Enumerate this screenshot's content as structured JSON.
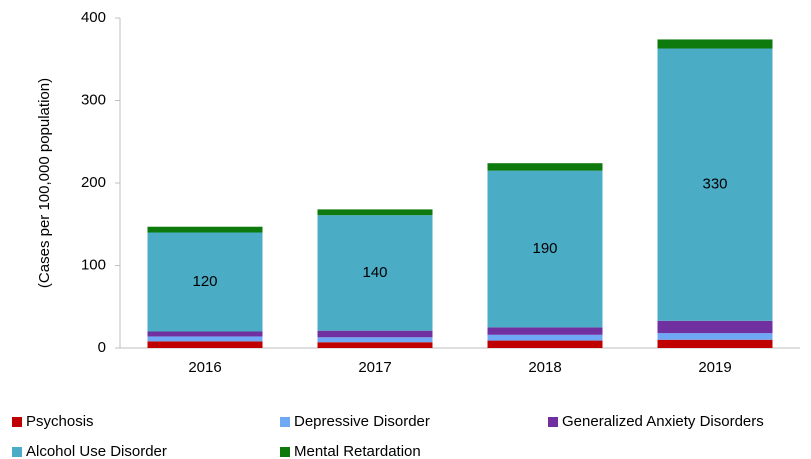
{
  "chart_data": {
    "type": "stacked_bar",
    "y_label": "(Cases per 100,000 population)",
    "categories": [
      "2016",
      "2017",
      "2018",
      "2019"
    ],
    "series": [
      {
        "name": "Psychosis",
        "color": "#c00000",
        "values": [
          8,
          7,
          9,
          10
        ]
      },
      {
        "name": "Depressive Disorder",
        "color": "#6fa8f5",
        "values": [
          6,
          6,
          7,
          8
        ]
      },
      {
        "name": "Generalized Anxiety Disorders",
        "color": "#7030a0",
        "values": [
          6,
          8,
          9,
          15
        ]
      },
      {
        "name": "Alcohol Use Disorder",
        "color": "#4bacc6",
        "values": [
          120,
          140,
          190,
          330
        ],
        "show_labels": true
      },
      {
        "name": "Mental Retardation",
        "color": "#0e7a0d",
        "values": [
          7,
          7,
          9,
          11
        ]
      }
    ],
    "ylim": [
      0,
      400
    ],
    "yticks": [
      0,
      100,
      200,
      300,
      400
    ],
    "grid": false
  }
}
